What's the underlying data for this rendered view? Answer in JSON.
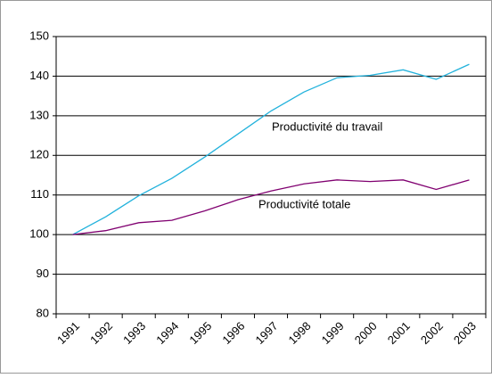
{
  "chart_data": {
    "type": "line",
    "categories": [
      "1991",
      "1992",
      "1993",
      "1994",
      "1995",
      "1996",
      "1997",
      "1998",
      "1999",
      "2000",
      "2001",
      "2002",
      "2003"
    ],
    "series": [
      {
        "name": "Productivité du travail",
        "color": "#22b2dc",
        "values": [
          100,
          104.5,
          109.8,
          114.2,
          119.6,
          125.4,
          131.2,
          136,
          139.6,
          140.2,
          141.6,
          139.2,
          143
        ]
      },
      {
        "name": "Productivité totale",
        "color": "#800070",
        "values": [
          100,
          101,
          103,
          103.6,
          106,
          108.8,
          111,
          112.8,
          113.8,
          113.4,
          113.8,
          111.4,
          113.8
        ]
      }
    ],
    "ylim": [
      80,
      150
    ],
    "yticks": [
      80,
      90,
      100,
      110,
      120,
      130,
      140,
      150
    ],
    "grid": true
  }
}
